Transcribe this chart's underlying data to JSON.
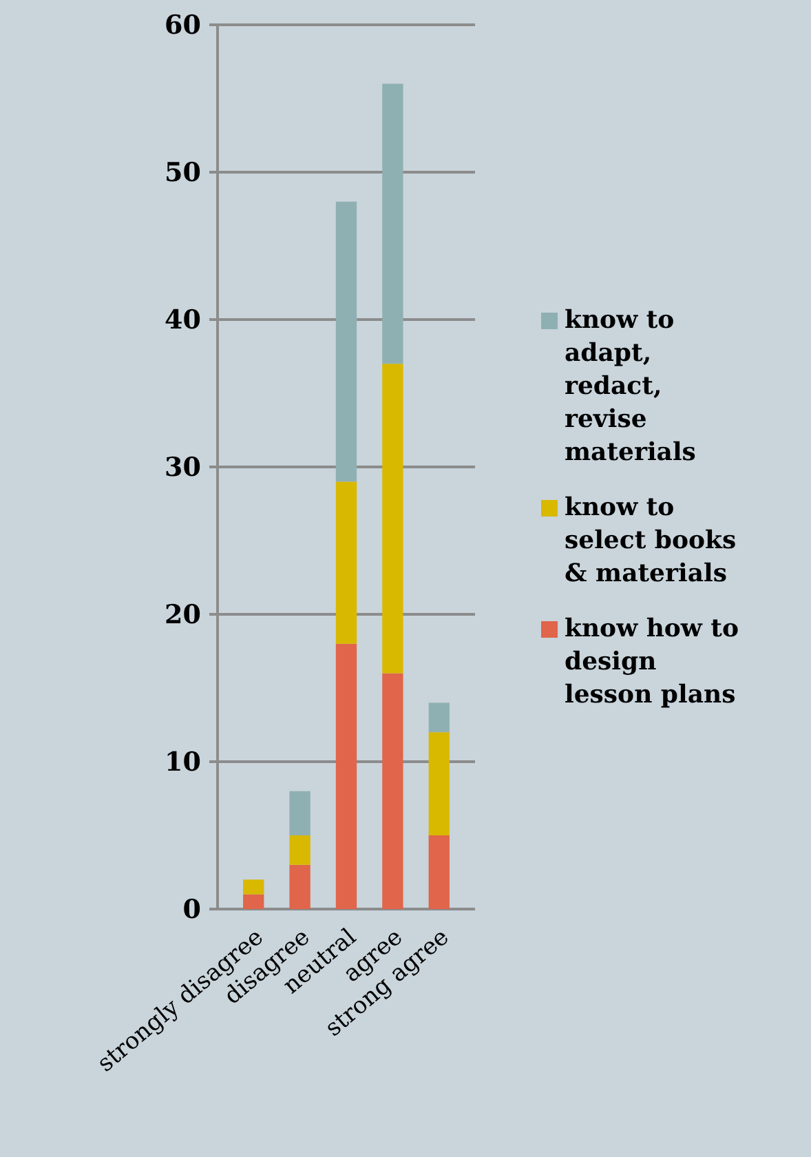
{
  "chart_data": {
    "type": "bar",
    "stacked": true,
    "categories": [
      "strongly disagree",
      "disagree",
      "neutral",
      "agree",
      "strong agree"
    ],
    "series": [
      {
        "name": "know how to design lesson plans",
        "color": "#e0654a",
        "values": [
          1,
          3,
          18,
          16,
          5
        ]
      },
      {
        "name": "know to select books & materials",
        "color": "#d9b800",
        "values": [
          1,
          2,
          11,
          21,
          7
        ]
      },
      {
        "name": "know to adapt, redact, revise materials",
        "color": "#8fb0b2",
        "values": [
          0,
          3,
          19,
          19,
          2
        ]
      }
    ],
    "ylim": [
      0,
      60
    ],
    "yticks": [
      0,
      10,
      20,
      30,
      40,
      50,
      60
    ],
    "grid": "y",
    "legend": "right"
  }
}
